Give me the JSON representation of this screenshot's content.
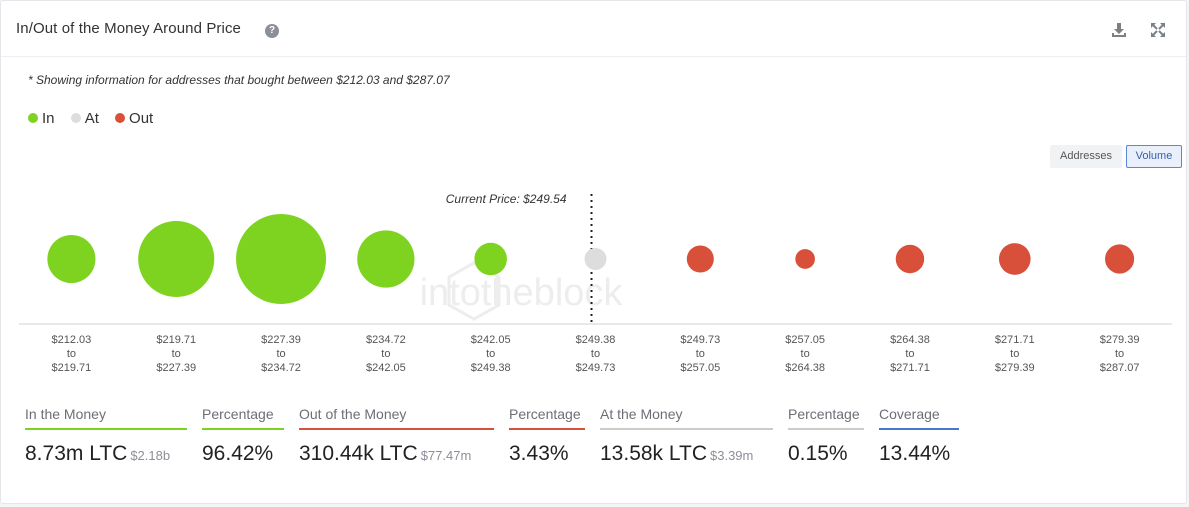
{
  "header": {
    "title": "In/Out of the Money Around Price",
    "help_icon": "?",
    "download_icon": "download-icon",
    "expand_icon": "expand-icon"
  },
  "note": "* Showing information for addresses that bought between $212.03 and $287.07",
  "legend": [
    {
      "label": "In",
      "color": "#7ed321"
    },
    {
      "label": "At",
      "color": "#dddddd"
    },
    {
      "label": "Out",
      "color": "#d9503a"
    }
  ],
  "toggle": {
    "addresses": "Addresses",
    "volume": "Volume",
    "selected": "Volume"
  },
  "watermark": "intotheblock",
  "chart_data": {
    "type": "bubble",
    "current_price_label": "Current Price: $249.54",
    "current_price": 249.54,
    "range_connector": "to",
    "categories": [
      {
        "from": "$212.03",
        "to": "$219.71",
        "status": "in",
        "volume": 1.2
      },
      {
        "from": "$219.71",
        "to": "$227.39",
        "status": "in",
        "volume": 3.0
      },
      {
        "from": "$227.39",
        "to": "$234.72",
        "status": "in",
        "volume": 4.2
      },
      {
        "from": "$234.72",
        "to": "$242.05",
        "status": "in",
        "volume": 1.7
      },
      {
        "from": "$242.05",
        "to": "$249.38",
        "status": "in",
        "volume": 0.55
      },
      {
        "from": "$249.38",
        "to": "$249.73",
        "status": "at",
        "volume": 0.25
      },
      {
        "from": "$249.73",
        "to": "$257.05",
        "status": "out",
        "volume": 0.38
      },
      {
        "from": "$257.05",
        "to": "$264.38",
        "status": "out",
        "volume": 0.2
      },
      {
        "from": "$264.38",
        "to": "$271.71",
        "status": "out",
        "volume": 0.42
      },
      {
        "from": "$271.71",
        "to": "$279.39",
        "status": "out",
        "volume": 0.52
      },
      {
        "from": "$279.39",
        "to": "$287.07",
        "status": "out",
        "volume": 0.44
      }
    ],
    "colors": {
      "in": "#7ed321",
      "at": "#dddddd",
      "out": "#d9503a"
    }
  },
  "stats": {
    "in_money_label": "In the Money",
    "in_money_value": "8.73m LTC",
    "in_money_sub": "$2.18b",
    "in_pct_label": "Percentage",
    "in_pct_value": "96.42%",
    "out_money_label": "Out of the Money",
    "out_money_value": "310.44k LTC",
    "out_money_sub": "$77.47m",
    "out_pct_label": "Percentage",
    "out_pct_value": "3.43%",
    "at_money_label": "At the Money",
    "at_money_value": "13.58k LTC",
    "at_money_sub": "$3.39m",
    "at_pct_label": "Percentage",
    "at_pct_value": "0.15%",
    "coverage_label": "Coverage",
    "coverage_value": "13.44%"
  }
}
